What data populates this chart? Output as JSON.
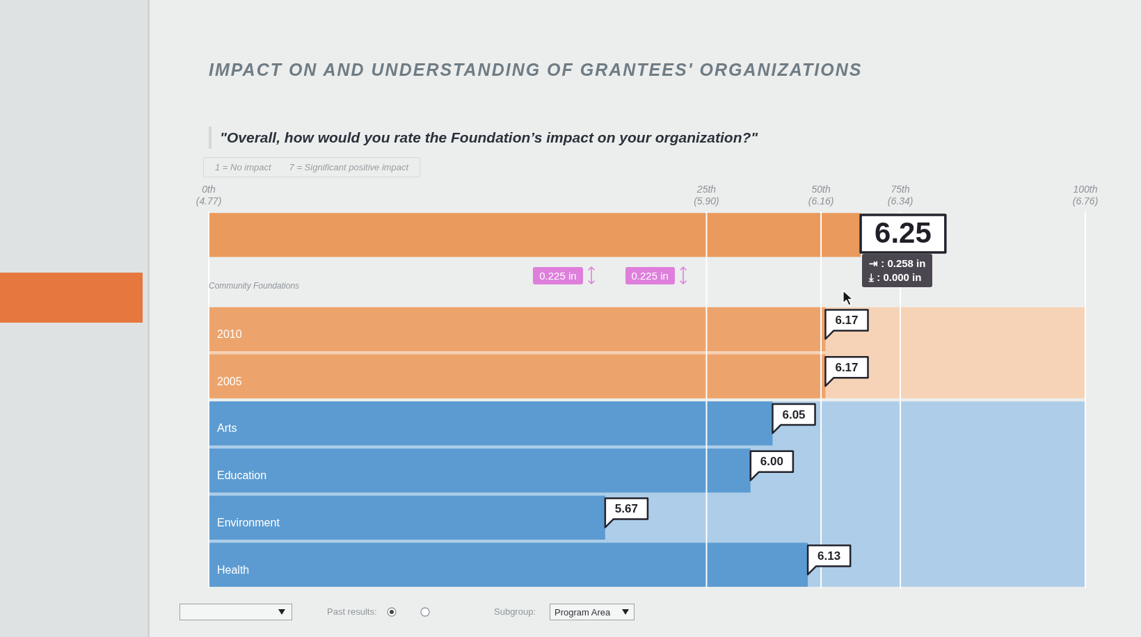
{
  "chart_data": {
    "type": "bar",
    "orientation": "horizontal",
    "title": "IMPACT ON AND UNDERSTANDING OF GRANTEES' ORGANIZATIONS",
    "subtitle": "\"Overall, how would you rate the Foundation’s impact on your organization?\"",
    "categories": [
      null,
      "Community Foundations",
      "2010",
      "2005",
      "Arts",
      "Education",
      "Environment",
      "Health"
    ],
    "values": [
      6.25,
      null,
      6.17,
      6.17,
      6.05,
      6.0,
      5.67,
      6.13
    ],
    "value_labels": [
      "6.25",
      null,
      "6.17",
      "6.17",
      "6.05",
      "6.00",
      "5.67",
      "6.13"
    ],
    "colors": [
      "#ea9a5c",
      null,
      "#eda46c",
      "#eda46c",
      "#5b9bd1",
      "#5b9bd1",
      "#5b9bd1",
      "#5b9bd1"
    ],
    "xlim": [
      4.77,
      6.76
    ],
    "tick_labels": "y",
    "bands": [
      {
        "axis": "y",
        "from": "2010",
        "to": "2005",
        "color": "#f6d2b6"
      },
      {
        "axis": "y",
        "from": "Arts",
        "to": "Health",
        "color": "#adcde8"
      }
    ],
    "ref_lines": [
      {
        "axis": "x",
        "value": 4.77,
        "label": "0th\n(4.77)",
        "color": "#ffffff"
      },
      {
        "axis": "x",
        "value": 5.9,
        "label": "25th\n(5.90)",
        "color": "#ffffff"
      },
      {
        "axis": "x",
        "value": 6.16,
        "label": "50th\n(6.16)",
        "color": "#ffffff"
      },
      {
        "axis": "x",
        "value": 6.34,
        "label": "75th\n(6.34)",
        "color": "#ffffff"
      },
      {
        "axis": "x",
        "value": 6.76,
        "label": "100th\n(6.76)",
        "color": "#ffffff"
      }
    ],
    "annotations": [
      "1 = No impact",
      "7 = Significant positive impact",
      "0.225 in",
      "0.225 in",
      "⇥ : 0.258 in",
      "⤓ : 0.000 in",
      "Past results:",
      "Subgroup:",
      "Program Area"
    ]
  }
}
